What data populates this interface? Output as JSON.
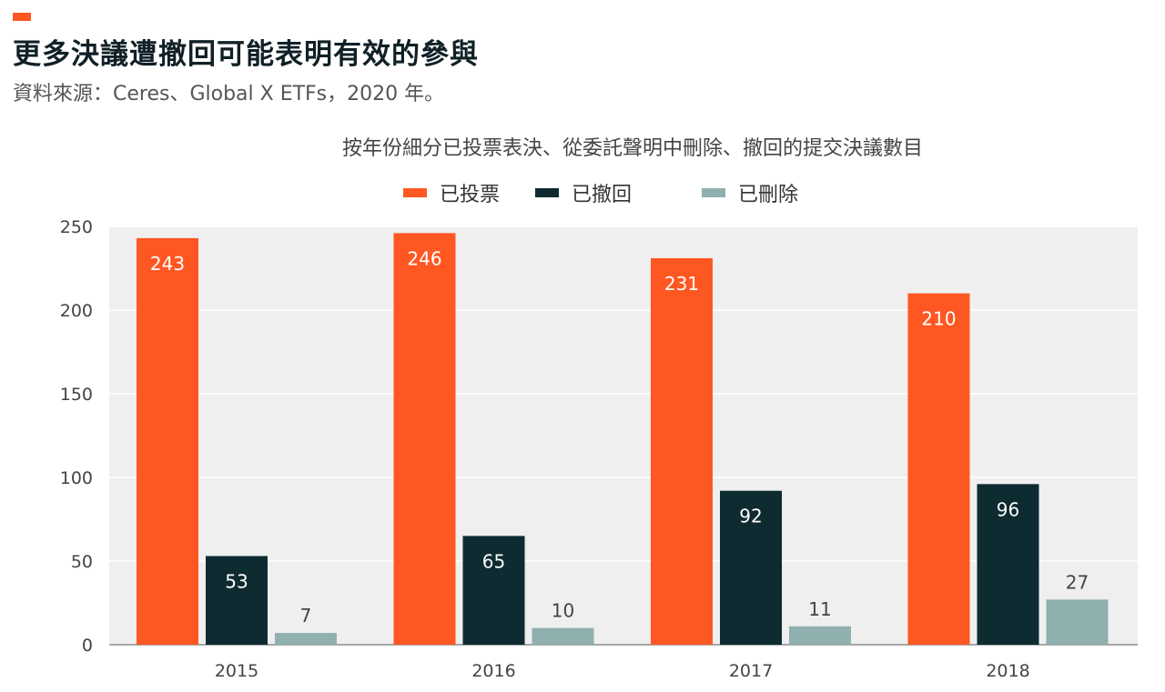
{
  "header": {
    "title": "更多決議遭撤回可能表明有效的參與",
    "source": "資料來源：Ceres、Global X ETFs，2020 年。"
  },
  "colors": {
    "accent": "#ff5722",
    "series": [
      "#ff5722",
      "#0d2b30",
      "#8fb0ae"
    ],
    "plot_bg": "#efefef",
    "grid": "#ffffff"
  },
  "chart_data": {
    "type": "bar",
    "title": "按年份細分已投票表決、從委託聲明中刪除、撤回的提交決議數目",
    "categories": [
      "2015",
      "2016",
      "2017",
      "2018"
    ],
    "series": [
      {
        "name": "已投票",
        "values": [
          243,
          246,
          231,
          210
        ]
      },
      {
        "name": "已撤回",
        "values": [
          53,
          65,
          92,
          96
        ]
      },
      {
        "name": "已刪除",
        "values": [
          7,
          10,
          11,
          27
        ]
      }
    ],
    "ylim": [
      0,
      250
    ],
    "yticks": [
      "0",
      "50",
      "100",
      "150",
      "200",
      "250"
    ],
    "grid": true,
    "legend": "top-center",
    "xlabel": "",
    "ylabel": ""
  }
}
